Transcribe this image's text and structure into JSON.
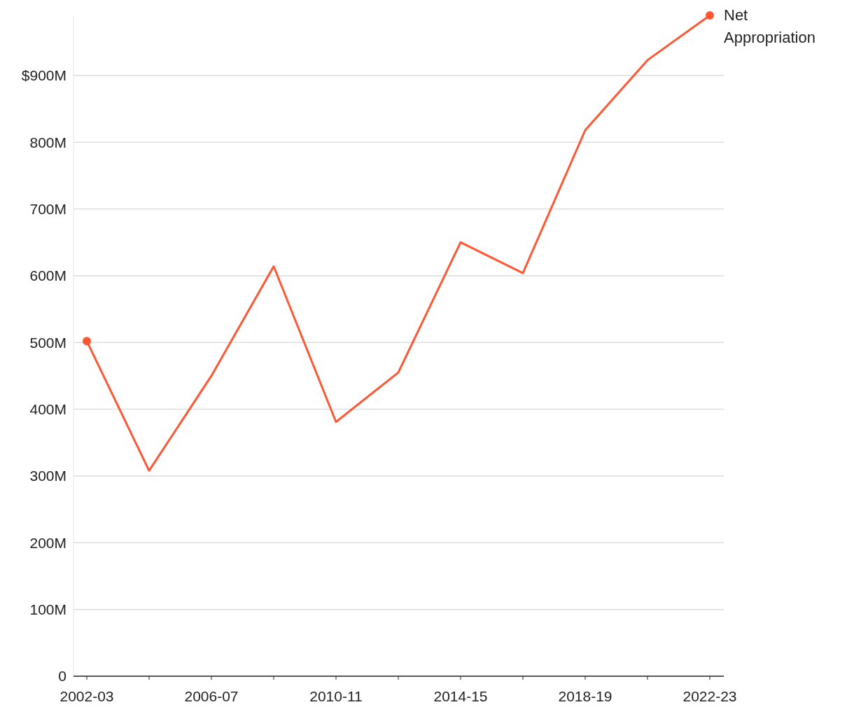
{
  "chart_data": {
    "type": "line",
    "categories": [
      "2002-03",
      null,
      "2006-07",
      null,
      "2010-11",
      null,
      "2014-15",
      null,
      "2018-19",
      null,
      "2022-23"
    ],
    "series": [
      {
        "name": "Net Appropriation",
        "color": "#ff5733",
        "values": [
          502,
          308,
          450,
          614,
          381,
          455,
          650,
          604,
          818,
          923,
          990
        ]
      }
    ],
    "yticks": [
      0,
      {
        "value": 100,
        "label": "100M"
      },
      {
        "value": 200,
        "label": "200M"
      },
      {
        "value": 300,
        "label": "300M"
      },
      {
        "value": 400,
        "label": "400M"
      },
      {
        "value": 500,
        "label": "500M"
      },
      {
        "value": 600,
        "label": "600M"
      },
      {
        "value": 700,
        "label": "700M"
      },
      {
        "value": 800,
        "label": "800M"
      },
      {
        "value": 900,
        "label": "$900M"
      }
    ],
    "ylim": [
      0,
      990
    ],
    "grid": "y"
  }
}
